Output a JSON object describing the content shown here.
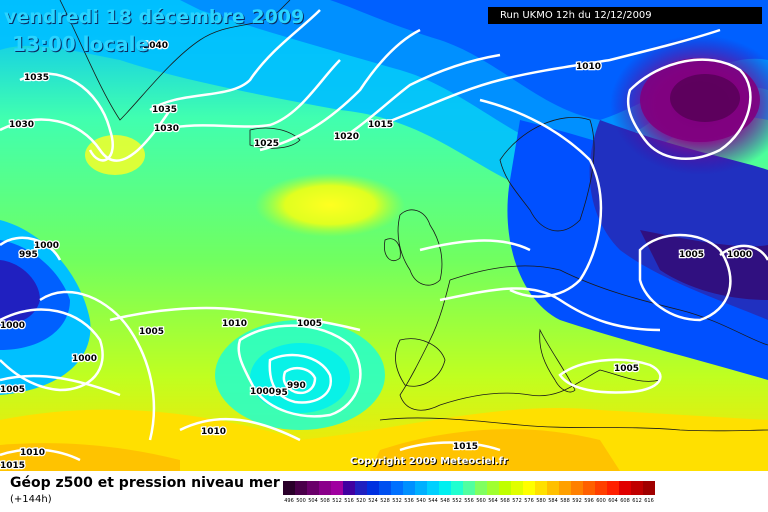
{
  "header": {
    "date_label": "vendredi 18 décembre 2009",
    "time_label": "13:00 locale",
    "run_label": "Run UKMO 12h du 12/12/2009"
  },
  "footer": {
    "title": "Géop z500 et pression niveau mer",
    "subtitle": "(+144h)",
    "copyright": "Copyright 2009 Meteociel.fr"
  },
  "isobar_labels": [
    "1040",
    "1035",
    "1030",
    "1035",
    "1030",
    "1025",
    "1020",
    "1015",
    "1010",
    "1000",
    "995",
    "1000",
    "1005",
    "1010",
    "1005",
    "1000",
    "1005",
    "990",
    "995",
    "1000",
    "1010",
    "1010",
    "1015",
    "1005",
    "1000",
    "1005",
    "1015"
  ],
  "legend": {
    "values": [
      "496",
      "500",
      "504",
      "508",
      "512",
      "516",
      "520",
      "524",
      "528",
      "532",
      "536",
      "540",
      "544",
      "548",
      "552",
      "556",
      "560",
      "564",
      "568",
      "572",
      "576",
      "580",
      "584",
      "588",
      "592",
      "596",
      "600",
      "604",
      "608",
      "612",
      "616"
    ],
    "colors": [
      "#2a002a",
      "#4a004a",
      "#6a006a",
      "#8a008a",
      "#a000a0",
      "#4000a0",
      "#2020c0",
      "#0030e0",
      "#0050f0",
      "#0070ff",
      "#0090ff",
      "#00b0ff",
      "#00d0ff",
      "#00f0f0",
      "#20ffd0",
      "#50ffa0",
      "#80ff60",
      "#a0ff30",
      "#c0ff00",
      "#e0ff00",
      "#ffff00",
      "#ffe000",
      "#ffc000",
      "#ffa000",
      "#ff8000",
      "#ff6000",
      "#ff4000",
      "#ff2000",
      "#e00000",
      "#c00000",
      "#a00000"
    ]
  }
}
